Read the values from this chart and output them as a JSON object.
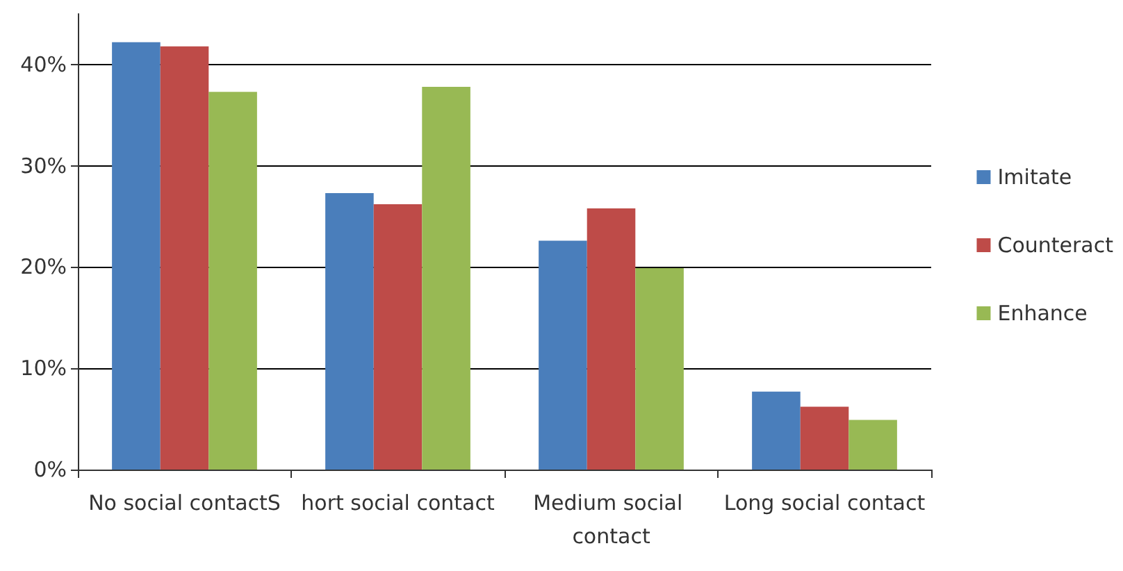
{
  "chart_data": {
    "type": "bar",
    "categories": [
      "No social contactS",
      "hort social contact",
      "Medium social contact",
      "Long social contact"
    ],
    "series": [
      {
        "name": "Imitate",
        "color": "#4a7ebb",
        "values": [
          42.2,
          27.3,
          22.6,
          7.7
        ]
      },
      {
        "name": "Counteract",
        "color": "#be4b48",
        "values": [
          41.8,
          26.2,
          25.8,
          6.2
        ]
      },
      {
        "name": "Enhance",
        "color": "#98b954",
        "values": [
          37.3,
          37.8,
          19.9,
          4.9
        ]
      }
    ],
    "ylim": [
      0,
      45
    ],
    "yticks": [
      {
        "value": 0,
        "label": "0%"
      },
      {
        "value": 10,
        "label": "10%"
      },
      {
        "value": 20,
        "label": "20%"
      },
      {
        "value": 30,
        "label": "30%"
      },
      {
        "value": 40,
        "label": "40%"
      }
    ],
    "grid": "y",
    "legend": "right"
  }
}
